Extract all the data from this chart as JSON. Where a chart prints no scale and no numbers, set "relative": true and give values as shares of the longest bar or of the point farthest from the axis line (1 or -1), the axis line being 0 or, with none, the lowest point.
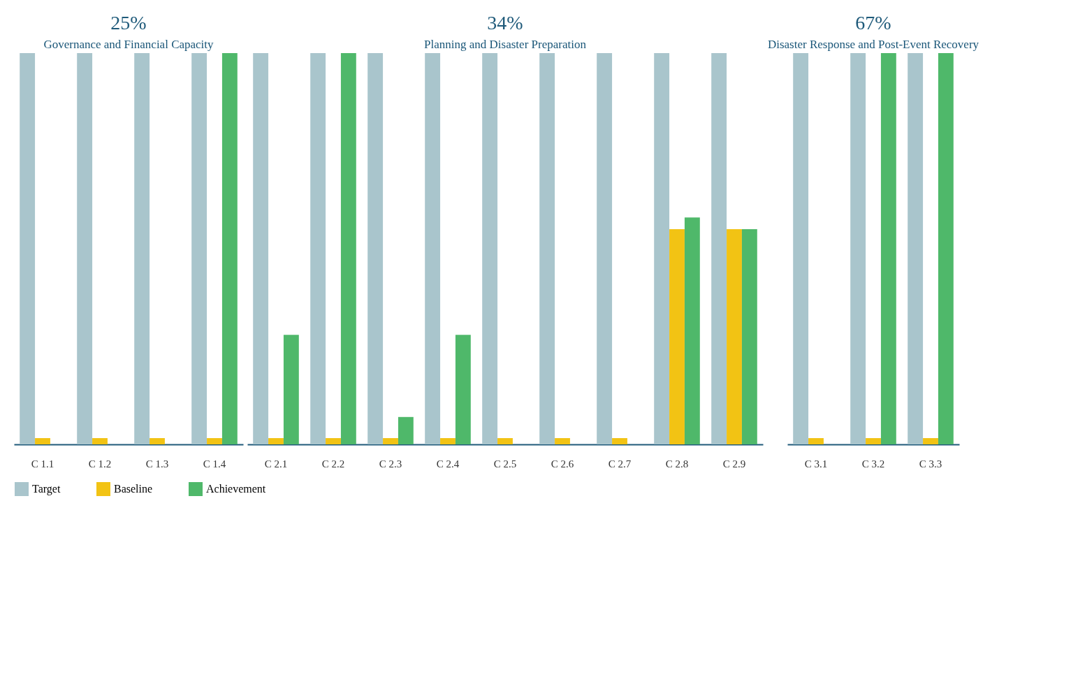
{
  "chart_data": [
    {
      "type": "bar",
      "title": "Governance and Financial Capacity",
      "subtitle": "25%",
      "relative": true,
      "legend": "bottom",
      "categories": [
        "C 1.1",
        "C 1.2",
        "C 1.3",
        "C 1.4"
      ],
      "series": [
        {
          "name": "Target",
          "color": "#a9c5cc",
          "values": [
            1,
            1,
            1,
            1
          ]
        },
        {
          "name": "Baseline",
          "color": "#f2c314",
          "values": [
            0.016,
            0.016,
            0.016,
            0.016
          ]
        },
        {
          "name": "Achievement",
          "color": "#4fb86a",
          "values": [
            null,
            null,
            null,
            1
          ]
        }
      ]
    },
    {
      "type": "bar",
      "title": "Planning and Disaster Preparation",
      "subtitle": "34%",
      "relative": true,
      "legend": false,
      "categories": [
        "C 2.1",
        "C 2.2",
        "C 2.3",
        "C 2.4",
        "C 2.5",
        "C 2.6",
        "C 2.7",
        "C 2.8",
        "C 2.9"
      ],
      "series": [
        {
          "color": "#a9c5cc",
          "values": [
            1,
            1,
            1,
            1,
            1,
            1,
            1,
            1,
            1
          ]
        },
        {
          "color": "#f2c314",
          "values": [
            0.016,
            0.016,
            0.016,
            0.016,
            0.016,
            0.016,
            0.016,
            0.55,
            0.55
          ]
        },
        {
          "color": "#4fb86a",
          "values": [
            0.28,
            1,
            0.07,
            0.28,
            null,
            null,
            null,
            0.58,
            0.55
          ]
        }
      ]
    },
    {
      "type": "bar",
      "title": "Disaster Response and Post-Event Recovery",
      "subtitle": "67%",
      "relative": true,
      "legend": false,
      "categories": [
        "C 3.1",
        "C 3.2",
        "C 3.3"
      ],
      "series": [
        {
          "color": "#a9c5cc",
          "values": [
            1,
            1,
            1
          ]
        },
        {
          "color": "#f2c314",
          "values": [
            0.016,
            0.016,
            0.016
          ]
        },
        {
          "color": "#4fb86a",
          "values": [
            null,
            1,
            1
          ]
        }
      ]
    }
  ]
}
